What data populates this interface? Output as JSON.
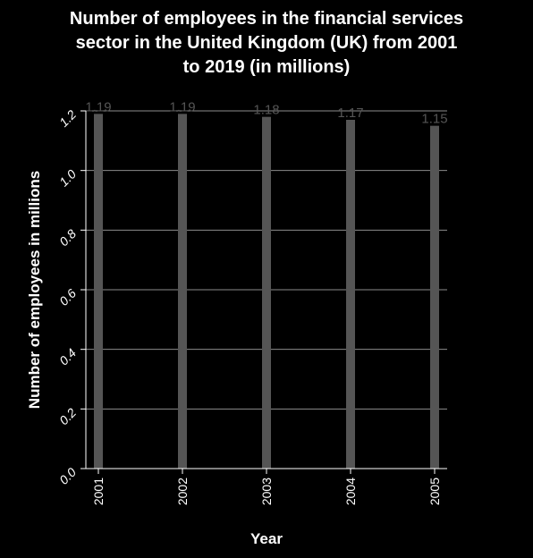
{
  "chart_data": {
    "type": "bar",
    "title": "Number of employees in the financial services\nsector in the United Kingdom (UK) from 2001\nto 2019 (in millions)",
    "xlabel": "Year",
    "ylabel": "Number of employees in millions",
    "categories": [
      "2001",
      "2002",
      "2003",
      "2004",
      "2005"
    ],
    "values": [
      1.19,
      1.19,
      1.18,
      1.17,
      1.15
    ],
    "data_labels": [
      "1.19",
      "1.19",
      "1.18",
      "1.17",
      "1.15"
    ],
    "ylim": [
      0,
      1.2
    ],
    "yticks": [
      "0.0",
      "0.2",
      "0.4",
      "0.6",
      "0.8",
      "1.0",
      "1.2"
    ],
    "grid": true,
    "bar_color": "#555555",
    "background_color": "#000000",
    "grid_color": "#ffffff"
  }
}
